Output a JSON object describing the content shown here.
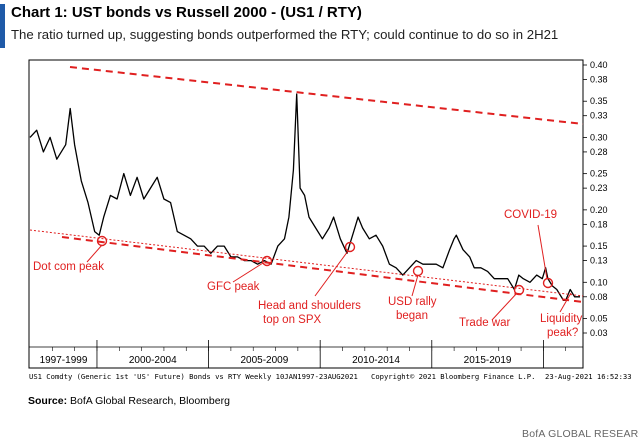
{
  "header": {
    "title": "Chart 1: UST bonds vs Russell 2000 - (US1 / RTY)",
    "subtitle": "The ratio turned up, suggesting bonds outperformed the RTY; could continue to do so in 2H21"
  },
  "footer": {
    "series_desc": "US1 Comdty (Generic 1st 'US' Future) Bonds vs RTY  Weekly 10JAN1997-23AUG2021",
    "copyright": "Copyright© 2021 Bloomberg Finance L.P.",
    "date": "23-Aug-2021 16:52:33",
    "source_label": "Source:",
    "source_text": " BofA Global Research, Bloomberg",
    "brand": "BofA GLOBAL RESEARCH"
  },
  "colors": {
    "accent": "#1f5aa8",
    "annotation": "#e02020",
    "series": "#000000"
  },
  "chart_data": {
    "type": "line",
    "title": "Chart 1: UST bonds vs Russell 2000 - (US1 / RTY)",
    "ylim": [
      0.03,
      0.41
    ],
    "yticks": [
      "0.40",
      "0.38",
      "0.35",
      "0.33",
      "0.30",
      "0.28",
      "0.25",
      "0.23",
      "0.20",
      "0.18",
      "0.15",
      "0.13",
      "0.10",
      "0.08",
      "0.05",
      "0.03"
    ],
    "ytick_values": [
      0.4,
      0.38,
      0.35,
      0.33,
      0.3,
      0.28,
      0.25,
      0.23,
      0.2,
      0.18,
      0.15,
      0.13,
      0.1,
      0.08,
      0.05,
      0.03
    ],
    "x_range": [
      1997.0,
      2021.64
    ],
    "x_groups": [
      {
        "label": "1997-1999",
        "start": 1997.0,
        "end": 2000.0
      },
      {
        "label": "2000-2004",
        "start": 2000.0,
        "end": 2005.0
      },
      {
        "label": "2005-2009",
        "start": 2005.0,
        "end": 2010.0
      },
      {
        "label": "2010-2014",
        "start": 2010.0,
        "end": 2015.0
      },
      {
        "label": "2015-2019",
        "start": 2015.0,
        "end": 2020.0
      }
    ],
    "series": [
      {
        "x": [
          1997.0,
          1997.3,
          1997.6,
          1997.9,
          1998.2,
          1998.6,
          1998.8,
          1999.0,
          1999.3,
          1999.6,
          1999.9,
          2000.1,
          2000.3,
          2000.6,
          2000.9,
          2001.2,
          2001.5,
          2001.8,
          2002.1,
          2002.4,
          2002.7,
          2003.0,
          2003.3,
          2003.6,
          2003.9,
          2004.2,
          2004.5,
          2004.8,
          2005.1,
          2005.4,
          2005.7,
          2006.0,
          2006.3,
          2006.6,
          2006.9,
          2007.2,
          2007.5,
          2007.8,
          2008.1,
          2008.4,
          2008.6,
          2008.8,
          2008.95,
          2009.1,
          2009.3,
          2009.5,
          2009.8,
          2010.1,
          2010.4,
          2010.6,
          2010.9,
          2011.2,
          2011.5,
          2011.7,
          2011.9,
          2012.2,
          2012.5,
          2012.8,
          2013.1,
          2013.4,
          2013.7,
          2014.0,
          2014.3,
          2014.6,
          2014.9,
          2015.2,
          2015.5,
          2015.8,
          2016.0,
          2016.1,
          2016.4,
          2016.7,
          2016.9,
          2017.2,
          2017.5,
          2017.8,
          2018.1,
          2018.4,
          2018.7,
          2018.9,
          2019.1,
          2019.4,
          2019.7,
          2019.95,
          2020.1,
          2020.2,
          2020.4,
          2020.6,
          2020.9,
          2021.0,
          2021.2,
          2021.4,
          2021.64
        ],
        "y": [
          0.3,
          0.31,
          0.28,
          0.3,
          0.27,
          0.29,
          0.34,
          0.29,
          0.24,
          0.21,
          0.17,
          0.165,
          0.19,
          0.22,
          0.215,
          0.25,
          0.22,
          0.245,
          0.215,
          0.23,
          0.245,
          0.215,
          0.21,
          0.17,
          0.165,
          0.16,
          0.15,
          0.15,
          0.14,
          0.15,
          0.15,
          0.135,
          0.135,
          0.13,
          0.13,
          0.125,
          0.13,
          0.125,
          0.15,
          0.16,
          0.19,
          0.255,
          0.36,
          0.23,
          0.22,
          0.19,
          0.175,
          0.16,
          0.175,
          0.19,
          0.16,
          0.14,
          0.17,
          0.19,
          0.175,
          0.16,
          0.165,
          0.15,
          0.125,
          0.12,
          0.11,
          0.12,
          0.13,
          0.125,
          0.125,
          0.125,
          0.12,
          0.145,
          0.16,
          0.165,
          0.145,
          0.135,
          0.12,
          0.12,
          0.115,
          0.105,
          0.105,
          0.105,
          0.09,
          0.11,
          0.105,
          0.1,
          0.11,
          0.105,
          0.12,
          0.105,
          0.095,
          0.09,
          0.075,
          0.075,
          0.09,
          0.08,
          0.08
        ]
      }
    ],
    "annotations": [
      "Dot com peak",
      "GFC peak",
      "Head and shoulders top on SPX",
      "USD rally began",
      "Trade war",
      "COVID-19",
      "Liquidity peak?"
    ]
  }
}
